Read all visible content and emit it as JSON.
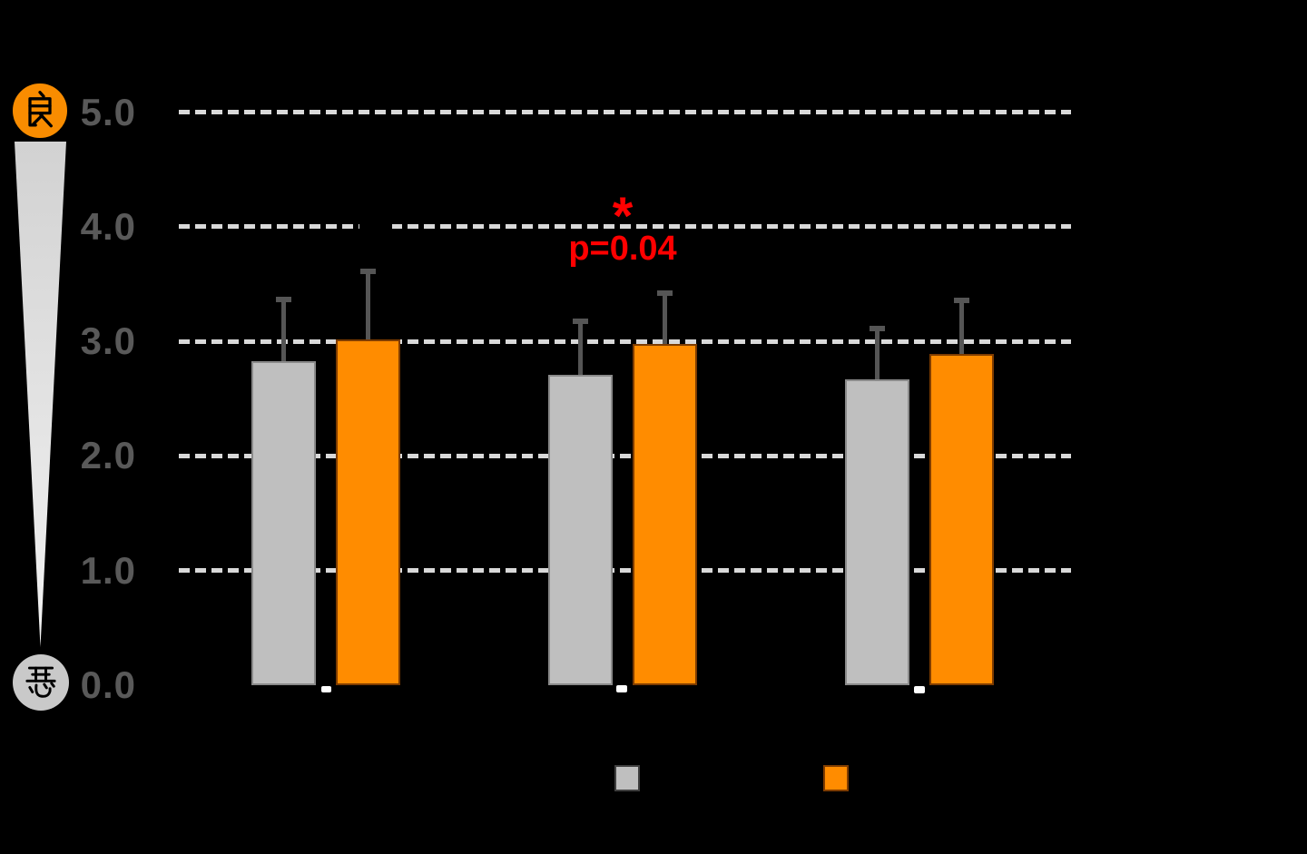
{
  "colors": {
    "background": "#000000",
    "axis_label": "#595959",
    "gridline": "#D9D9D9",
    "bar_gray": "#BFBFBF",
    "bar_orange": "#FF8C00",
    "error_bar": "#555555",
    "annotation": "#FF0000",
    "good_circle": "#F98C00",
    "bad_circle": "#C9C9C9"
  },
  "scale": {
    "good_label": "良",
    "bad_label": "悪"
  },
  "y_axis": {
    "tick_labels": [
      "5.0",
      "4.0",
      "3.0",
      "2.0",
      "1.0",
      "0.0"
    ]
  },
  "annotation": {
    "star": "*",
    "p_value": "p=0.04"
  },
  "legend": {
    "items": [
      {
        "label": "",
        "color": "#BFBFBF"
      },
      {
        "label": "",
        "color": "#FF8C00"
      }
    ]
  },
  "chart_data": {
    "type": "bar",
    "categories": [
      "",
      "",
      ""
    ],
    "series": [
      {
        "name": "gray-series",
        "color": "#BFBFBF",
        "values": [
          2.83,
          2.71,
          2.67
        ],
        "errors_plus": [
          0.55,
          0.48,
          0.46
        ]
      },
      {
        "name": "orange-series",
        "color": "#FF8C00",
        "values": [
          3.02,
          2.98,
          2.89
        ],
        "errors_plus": [
          0.61,
          0.46,
          0.48
        ]
      }
    ],
    "ylim": [
      0,
      5
    ],
    "yticks": [
      5,
      4,
      3,
      2,
      1,
      0
    ],
    "ytick_labels": [
      "5.0",
      "4.0",
      "3.0",
      "2.0",
      "1.0",
      "0.0"
    ],
    "grid": "horizontal-dashed",
    "legend_position": "bottom",
    "annotations": [
      {
        "text": "*",
        "color": "#FF0000",
        "target_group_index": 1
      },
      {
        "text": "p=0.04",
        "color": "#FF0000",
        "target_group_index": 1
      }
    ],
    "y_axis_endpoints": {
      "top": "良 (good)",
      "bottom": "悪 (bad)"
    }
  }
}
